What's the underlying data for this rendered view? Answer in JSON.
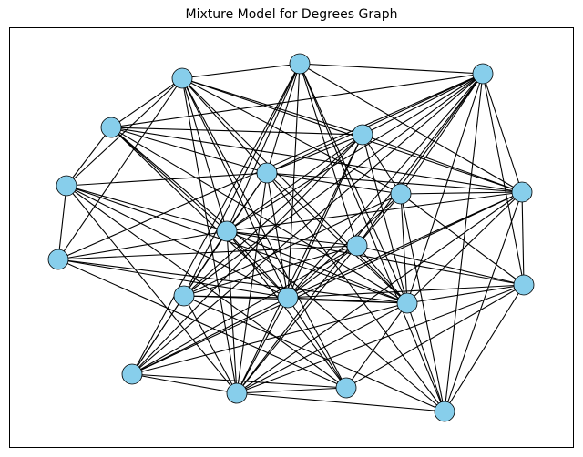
{
  "title": "Mixture Model for Degrees Graph",
  "colors": {
    "node_fill": "#87ceeb",
    "node_stroke": "#000000",
    "edge": "#000000",
    "frame": "#000000",
    "background": "#ffffff"
  },
  "graph": {
    "node_count": 20,
    "edges": [
      [
        0,
        1
      ],
      [
        0,
        3
      ],
      [
        0,
        5
      ],
      [
        0,
        6
      ],
      [
        0,
        9
      ],
      [
        0,
        10
      ],
      [
        0,
        13
      ],
      [
        0,
        14
      ],
      [
        0,
        15
      ],
      [
        0,
        19
      ],
      [
        1,
        2
      ],
      [
        1,
        3
      ],
      [
        1,
        5
      ],
      [
        1,
        6
      ],
      [
        1,
        9
      ],
      [
        1,
        13
      ],
      [
        1,
        17
      ],
      [
        1,
        18
      ],
      [
        2,
        3
      ],
      [
        2,
        6
      ],
      [
        2,
        9
      ],
      [
        2,
        12
      ],
      [
        2,
        13
      ],
      [
        2,
        14
      ],
      [
        2,
        18
      ],
      [
        3,
        4
      ],
      [
        3,
        5
      ],
      [
        3,
        6
      ],
      [
        3,
        9
      ],
      [
        3,
        10
      ],
      [
        3,
        11
      ],
      [
        3,
        13
      ],
      [
        3,
        15
      ],
      [
        3,
        17
      ],
      [
        3,
        18
      ],
      [
        4,
        5
      ],
      [
        4,
        6
      ],
      [
        4,
        7
      ],
      [
        4,
        8
      ],
      [
        4,
        9
      ],
      [
        4,
        12
      ],
      [
        4,
        13
      ],
      [
        4,
        14
      ],
      [
        4,
        15
      ],
      [
        4,
        19
      ],
      [
        5,
        6
      ],
      [
        5,
        7
      ],
      [
        5,
        9
      ],
      [
        5,
        10
      ],
      [
        5,
        11
      ],
      [
        5,
        13
      ],
      [
        5,
        14
      ],
      [
        5,
        15
      ],
      [
        5,
        17
      ],
      [
        5,
        19
      ],
      [
        6,
        7
      ],
      [
        6,
        8
      ],
      [
        6,
        9
      ],
      [
        6,
        10
      ],
      [
        6,
        12
      ],
      [
        6,
        13
      ],
      [
        6,
        14
      ],
      [
        6,
        15
      ],
      [
        6,
        16
      ],
      [
        6,
        17
      ],
      [
        6,
        18
      ],
      [
        7,
        8
      ],
      [
        7,
        9
      ],
      [
        7,
        10
      ],
      [
        7,
        11
      ],
      [
        7,
        12
      ],
      [
        7,
        13
      ],
      [
        7,
        14
      ],
      [
        7,
        17
      ],
      [
        7,
        19
      ],
      [
        8,
        9
      ],
      [
        8,
        10
      ],
      [
        8,
        12
      ],
      [
        8,
        13
      ],
      [
        8,
        14
      ],
      [
        8,
        15
      ],
      [
        8,
        17
      ],
      [
        8,
        18
      ],
      [
        9,
        10
      ],
      [
        9,
        11
      ],
      [
        9,
        12
      ],
      [
        9,
        13
      ],
      [
        9,
        14
      ],
      [
        9,
        15
      ],
      [
        9,
        16
      ],
      [
        9,
        17
      ],
      [
        9,
        18
      ],
      [
        10,
        11
      ],
      [
        10,
        13
      ],
      [
        10,
        14
      ],
      [
        10,
        15
      ],
      [
        10,
        17
      ],
      [
        11,
        12
      ],
      [
        11,
        13
      ],
      [
        11,
        14
      ],
      [
        11,
        15
      ],
      [
        11,
        16
      ],
      [
        11,
        19
      ],
      [
        12,
        13
      ],
      [
        12,
        14
      ],
      [
        12,
        16
      ],
      [
        12,
        17
      ],
      [
        13,
        14
      ],
      [
        13,
        15
      ],
      [
        13,
        16
      ],
      [
        13,
        17
      ],
      [
        13,
        18
      ],
      [
        13,
        19
      ],
      [
        14,
        15
      ],
      [
        14,
        16
      ],
      [
        14,
        17
      ],
      [
        14,
        19
      ],
      [
        15,
        16
      ],
      [
        15,
        17
      ],
      [
        15,
        19
      ],
      [
        16,
        17
      ],
      [
        16,
        18
      ],
      [
        16,
        19
      ],
      [
        17,
        18
      ],
      [
        17,
        19
      ]
    ]
  }
}
